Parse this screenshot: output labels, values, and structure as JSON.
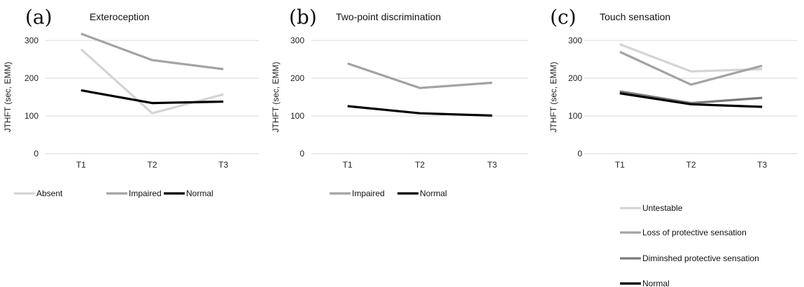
{
  "chart_data": [
    {
      "type": "line",
      "panel_label": "(a)",
      "title": "Exteroception",
      "ylabel": "JTHFT (sec, EMM)",
      "categories": [
        "T1",
        "T2",
        "T3"
      ],
      "ylim": [
        0,
        300
      ],
      "yticks": [
        0,
        100,
        200,
        300
      ],
      "grid": true,
      "legend_position": "bottom",
      "series": [
        {
          "name": "Absent",
          "color": "#d4d4d4",
          "values": [
            277,
            107,
            157
          ]
        },
        {
          "name": "Impaired",
          "color": "#a3a3a3",
          "values": [
            318,
            248,
            224
          ]
        },
        {
          "name": "Normal",
          "color": "#000000",
          "values": [
            168,
            134,
            138
          ]
        }
      ]
    },
    {
      "type": "line",
      "panel_label": "(b)",
      "title": "Two-point discrimination",
      "ylabel": "JTHFT (sec, EMM)",
      "categories": [
        "T1",
        "T2",
        "T3"
      ],
      "ylim": [
        0,
        300
      ],
      "yticks": [
        0,
        100,
        200,
        300
      ],
      "grid": true,
      "legend_position": "bottom",
      "series": [
        {
          "name": "Impaired",
          "color": "#a3a3a3",
          "values": [
            239,
            174,
            188
          ]
        },
        {
          "name": "Normal",
          "color": "#000000",
          "values": [
            126,
            107,
            101
          ]
        }
      ]
    },
    {
      "type": "line",
      "panel_label": "(c)",
      "title": "Touch sensation",
      "ylabel": "JTHFT (sec, EMM)",
      "categories": [
        "T1",
        "T2",
        "T3"
      ],
      "ylim": [
        0,
        300
      ],
      "yticks": [
        0,
        100,
        200,
        300
      ],
      "grid": true,
      "legend_position": "bottom",
      "series": [
        {
          "name": "Untestable",
          "color": "#d4d4d4",
          "values": [
            290,
            218,
            224
          ]
        },
        {
          "name": "Loss of protective sensation",
          "color": "#a3a3a3",
          "values": [
            270,
            183,
            233
          ]
        },
        {
          "name": "Diminshed protective sensation",
          "color": "#7a7a7a",
          "values": [
            165,
            134,
            148
          ]
        },
        {
          "name": "Normal",
          "color": "#000000",
          "values": [
            160,
            131,
            124
          ]
        }
      ]
    }
  ]
}
